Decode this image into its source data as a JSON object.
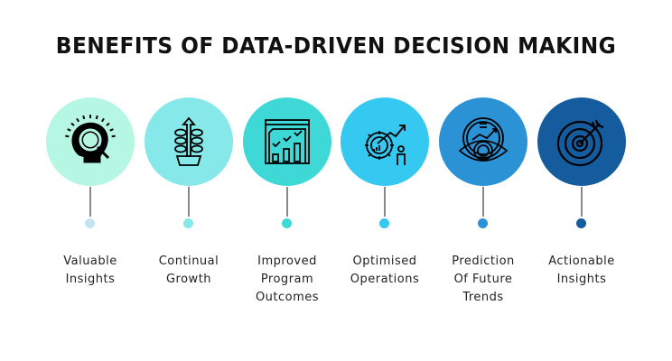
{
  "title": "BENEFITS OF DATA-DRIVEN DECISION MAKING",
  "items": [
    {
      "lines": [
        "Valuable",
        "Insights"
      ],
      "icon": "lightbulb-magnifier-icon",
      "color": "#b5f7e3",
      "dot_color": "#c5e2ef"
    },
    {
      "lines": [
        "Continual",
        "Growth"
      ],
      "icon": "plant-growth-icon",
      "color": "#86e8e8",
      "dot_color": "#86e8e8"
    },
    {
      "lines": [
        "Improved",
        "Program",
        "Outcomes"
      ],
      "icon": "chart-dashboard-icon",
      "color": "#3ed8d6",
      "dot_color": "#3ed8d6"
    },
    {
      "lines": [
        "Optimised",
        "Operations"
      ],
      "icon": "gear-growth-icon",
      "color": "#35c8f0",
      "dot_color": "#35c8f0"
    },
    {
      "lines": [
        "Prediction",
        "Of Future",
        "Trends"
      ],
      "icon": "eye-forecast-icon",
      "color": "#2c92d6",
      "dot_color": "#2c92d6"
    },
    {
      "lines": [
        "Actionable",
        "Insights"
      ],
      "icon": "target-icon",
      "color": "#155c9e",
      "dot_color": "#155c9e"
    }
  ]
}
